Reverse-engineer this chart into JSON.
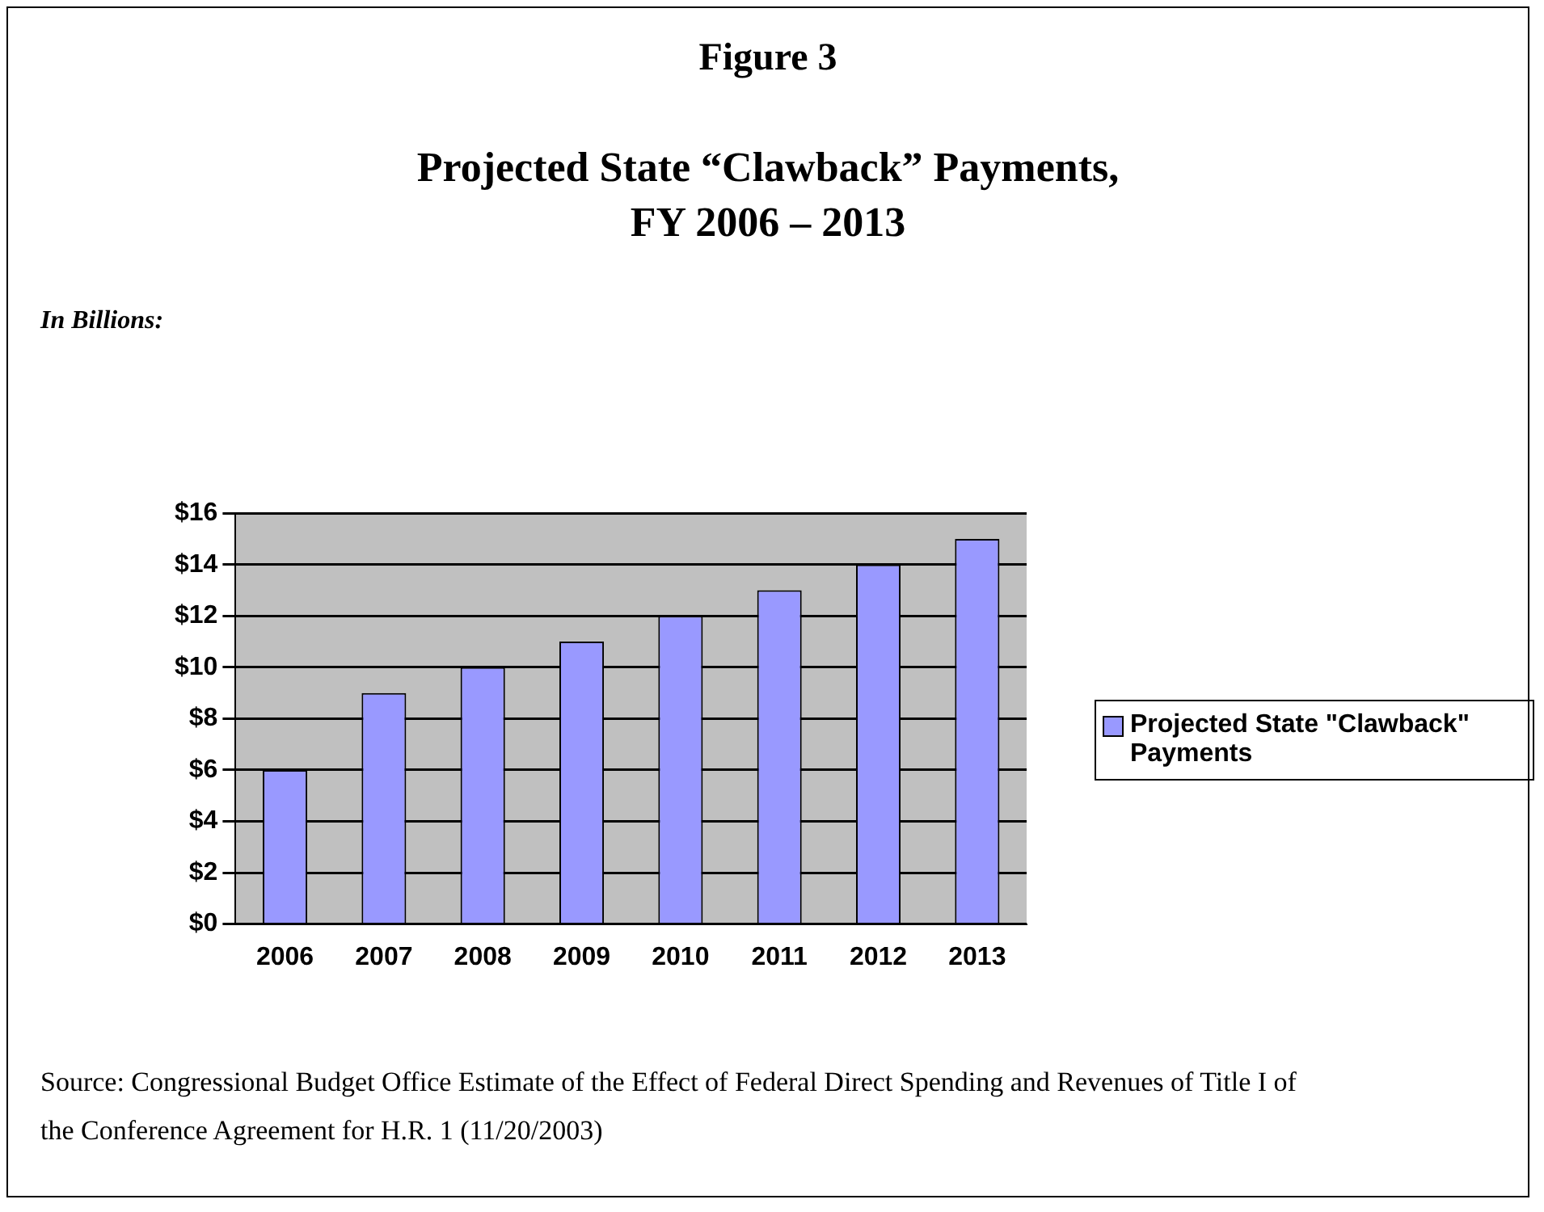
{
  "chart_data": {
    "type": "bar",
    "subtitle": "Figure 3",
    "title": "Projected State “Clawback” Payments, FY 2006 – 2013",
    "categories": [
      "2006",
      "2007",
      "2008",
      "2009",
      "2010",
      "2011",
      "2012",
      "2013"
    ],
    "series": [
      {
        "name": "Projected State \"Clawback\" Payments",
        "color": "#9999ff",
        "values": [
          6,
          9,
          10,
          11,
          12,
          13,
          14,
          15
        ]
      }
    ],
    "ylim": [
      0,
      16
    ],
    "yticks": [
      {
        "value": 0,
        "label": "$0"
      },
      {
        "value": 2,
        "label": "$2"
      },
      {
        "value": 4,
        "label": "$4"
      },
      {
        "value": 6,
        "label": "$6"
      },
      {
        "value": 8,
        "label": "$8"
      },
      {
        "value": 10,
        "label": "$10"
      },
      {
        "value": 12,
        "label": "$12"
      },
      {
        "value": 14,
        "label": "$14"
      },
      {
        "value": 16,
        "label": "$16"
      }
    ],
    "grid": "y",
    "legend": "right",
    "annotations": [
      "In Billions:",
      "Source:  Congressional Budget Office Estimate of the Effect of Federal Direct Spending and Revenues of Title I of the Conference Agreement for H.R. 1 (11/20/2003)"
    ]
  }
}
